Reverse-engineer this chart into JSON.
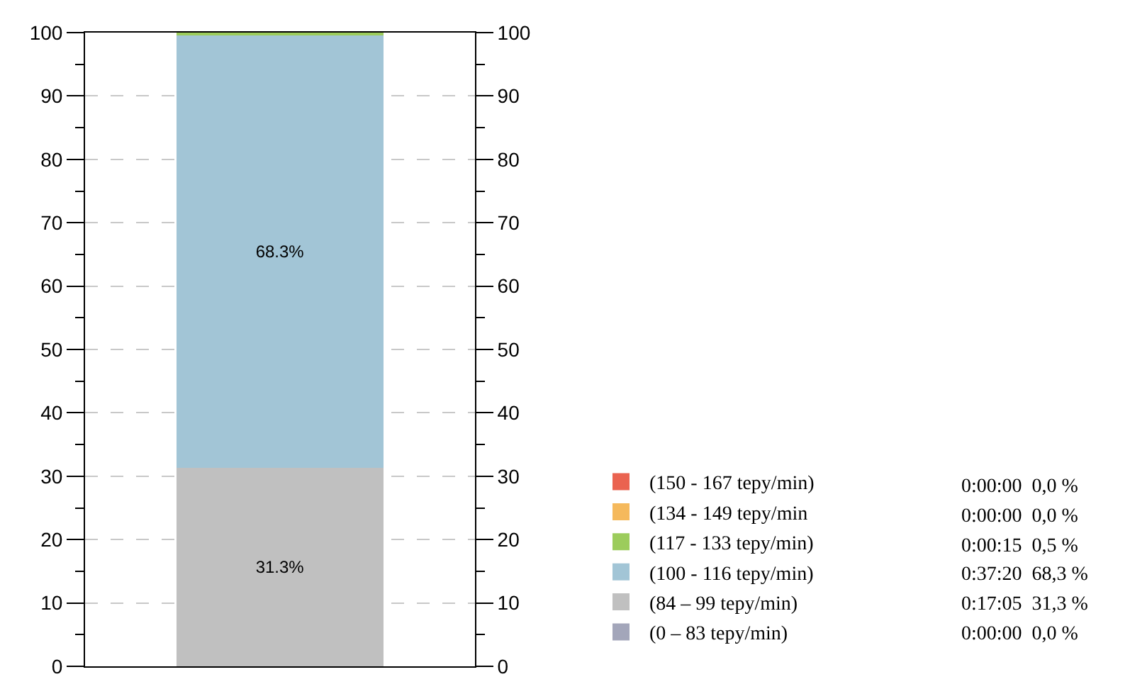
{
  "chart_data": {
    "type": "bar",
    "stacked": true,
    "categories": [
      null
    ],
    "series": [
      {
        "name": "(0 – 83 tepy/min)",
        "color": "#a3a6ba",
        "values": [
          0
        ],
        "value_labels": [
          null
        ]
      },
      {
        "name": "(84 – 99 tepy/min)",
        "color": "#c0c0c0",
        "values": [
          31.3
        ],
        "value_labels": [
          "31.3%"
        ]
      },
      {
        "name": "(100 - 116 tepy/min)",
        "color": "#a2c5d6",
        "values": [
          68.3
        ],
        "value_labels": [
          "68.3%"
        ]
      },
      {
        "name": "(117 - 133 tepy/min)",
        "color": "#9ccc5c",
        "values": [
          0.5
        ],
        "value_labels": [
          null
        ]
      },
      {
        "name": "(134 - 149 tepy/min",
        "color": "#f5b95c",
        "values": [
          0
        ],
        "value_labels": [
          null
        ]
      },
      {
        "name": "(150 - 167 tepy/min)",
        "color": "#ea6350",
        "values": [
          0
        ],
        "value_labels": [
          null
        ]
      }
    ],
    "ylim": [
      0,
      100
    ],
    "yticks": [
      0,
      10,
      20,
      30,
      40,
      50,
      60,
      70,
      80,
      90,
      100
    ],
    "y2lim": [
      0,
      100
    ],
    "y2ticks": [
      0,
      10,
      20,
      30,
      40,
      50,
      60,
      70,
      80,
      90,
      100
    ],
    "grid": "y",
    "legend": "bottom right",
    "annotations": [
      "0:00:00  0,0 %",
      "0:00:00  0,0 %",
      "0:00:15  0,5 %",
      "0:37:20  68,3 %",
      "0:17:05  31,3 %",
      "0:00:00  0,0 %"
    ]
  }
}
